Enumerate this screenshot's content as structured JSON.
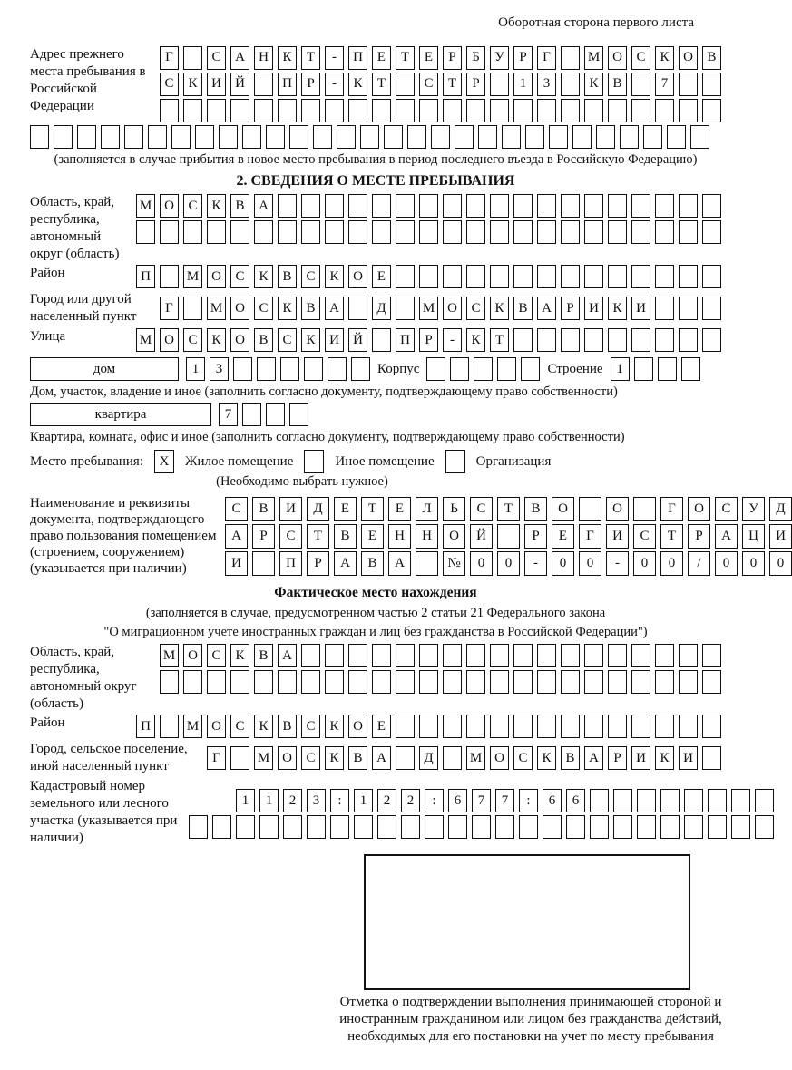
{
  "page": {
    "corner_note": "Оборотная сторона первого листа"
  },
  "prev_address": {
    "label": "Адрес прежнего места пребывания в Российской Федерации",
    "row1": {
      "text": "Г САНКТ-ПЕТЕРБУРГ МОСКОВ",
      "len": 24
    },
    "row2": {
      "text": "СКИЙ ПР-КТ СТР 13 КВ 7",
      "len": 24
    },
    "row3": {
      "text": "",
      "len": 24
    },
    "row4": {
      "text": "",
      "len": 29
    },
    "note": "(заполняется в случае прибытия в новое место пребывания в период последнего въезда в Российскую Федерацию)"
  },
  "section2": {
    "title": "2. СВЕДЕНИЯ О МЕСТЕ ПРЕБЫВАНИЯ",
    "region": {
      "label": "Область, край, республика, автономный округ (область)",
      "row1": {
        "text": "МОСКВА",
        "len": 25
      },
      "row2": {
        "text": "",
        "len": 25
      }
    },
    "district": {
      "label": "Район",
      "cells": {
        "text": "П МОСКВСКОЕ",
        "len": 25
      }
    },
    "city": {
      "label": "Город или другой населенный пункт",
      "cells": {
        "text": "Г МОСКВА Д МОСКВАРИКИ",
        "len": 24
      }
    },
    "street": {
      "label": "Улица",
      "cells": {
        "text": "МОСКОВСКИЙ ПР-КТ",
        "len": 25
      }
    },
    "house": {
      "box_label": "дом",
      "number": {
        "text": "13",
        "len": 8
      },
      "korpus_label": "Корпус",
      "korpus": {
        "text": "",
        "len": 5
      },
      "stroenie_label": "Строение",
      "stroenie": {
        "text": "1",
        "len": 4
      }
    },
    "house_note": "Дом, участок, владение и иное (заполнить согласно документу, подтверждающему право собственности)",
    "apartment": {
      "box_label": "квартира",
      "cells": {
        "text": "7",
        "len": 4
      }
    },
    "apartment_note": "Квартира, комната, офис и иное (заполнить согласно документу, подтверждающему право собственности)",
    "stay": {
      "label": "Место пребывания:",
      "options": [
        {
          "label": "Жилое помещение",
          "mark": "X"
        },
        {
          "label": "Иное помещение",
          "mark": ""
        },
        {
          "label": "Организация",
          "mark": ""
        }
      ],
      "note": "(Необходимо выбрать нужное)"
    },
    "document": {
      "label": "Наименование и реквизиты документа, подтверждающего право пользования помещением (строением, сооружением) (указывается при наличии)",
      "row1": {
        "text": "СВИДЕТЕЛЬСТВО О ГОСУД",
        "len": 21
      },
      "row2": {
        "text": "АРСТВЕННОЙ РЕГИСТРАЦИ",
        "len": 21
      },
      "row3": {
        "text": "И ПРАВА №00-00-00/000",
        "len": 21
      }
    }
  },
  "actual": {
    "title": "Фактическое место нахождения",
    "note1": "(заполняется в случае, предусмотренном частью 2 статьи 21 Федерального закона",
    "note2": "\"О миграционном учете иностранных граждан и лиц без гражданства в Российской Федерации\")",
    "region": {
      "label": "Область, край, республика, автономный округ (область)",
      "row1": {
        "text": "МОСКВА",
        "len": 24
      },
      "row2": {
        "text": "",
        "len": 24
      }
    },
    "district": {
      "label": "Район",
      "cells": {
        "text": "П МОСКВСКОЕ",
        "len": 25
      }
    },
    "city": {
      "label": "Город, сельское поселение, иной населенный пункт",
      "cells": {
        "text": "Г МОСКВА Д МОСКВАРИКИ",
        "len": 22
      }
    },
    "cadastral": {
      "label": "Кадастровый номер земельного или лесного участка (указывается при наличии)",
      "row1": {
        "text": "1123:122:677:66",
        "len": 23
      },
      "row2": {
        "text": "",
        "len": 25
      }
    },
    "stamp_note": "Отметка о подтверждении выполнения принимающей стороной и иностранным гражданином или лицом без гражданства действий, необходимых для его постановки на учет по месту пребывания"
  }
}
